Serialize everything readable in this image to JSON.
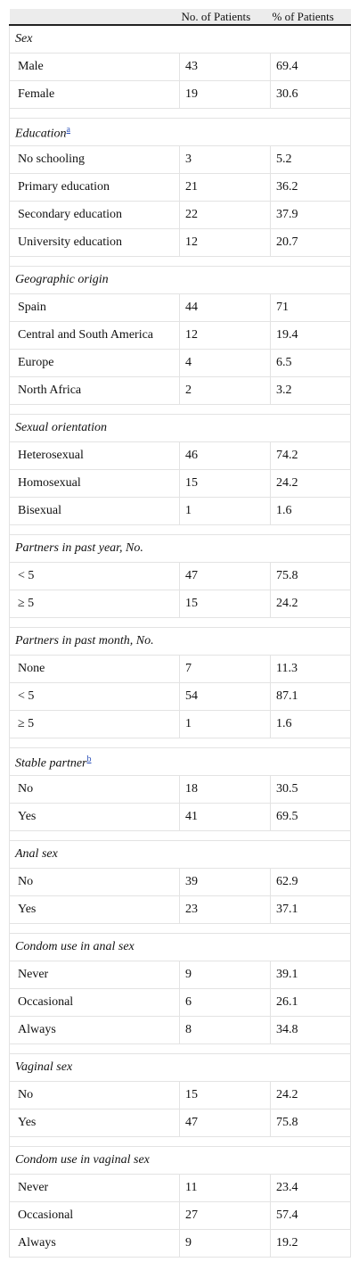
{
  "table": {
    "header": [
      "No. of Patients",
      "% of Patients"
    ],
    "sections": [
      {
        "title": "Sex",
        "rows": [
          [
            "Male",
            43,
            69.4
          ],
          [
            "Female",
            19,
            30.6
          ]
        ]
      },
      {
        "title": "Education",
        "note": "a",
        "rows": [
          [
            "No schooling",
            3,
            5.2
          ],
          [
            "Primary education",
            21,
            36.2
          ],
          [
            "Secondary education",
            22,
            37.9
          ],
          [
            "University education",
            12,
            20.7
          ]
        ]
      },
      {
        "title": "Geographic origin",
        "rows": [
          [
            "Spain",
            44,
            71
          ],
          [
            "Central and South America",
            12,
            19.4
          ],
          [
            "Europe",
            4,
            6.5
          ],
          [
            "North Africa",
            2,
            3.2
          ]
        ]
      },
      {
        "title": "Sexual orientation",
        "rows": [
          [
            "Heterosexual",
            46,
            74.2
          ],
          [
            "Homosexual",
            15,
            24.2
          ],
          [
            "Bisexual",
            1,
            1.6
          ]
        ]
      },
      {
        "title": "Partners in past year, No.",
        "rows": [
          [
            "< 5",
            47,
            75.8
          ],
          [
            "≥ 5",
            15,
            24.2
          ]
        ]
      },
      {
        "title": "Partners in past month, No.",
        "rows": [
          [
            "None",
            7,
            11.3
          ],
          [
            "< 5",
            54,
            87.1
          ],
          [
            "≥ 5",
            1,
            1.6
          ]
        ]
      },
      {
        "title": "Stable partner",
        "note": "b",
        "rows": [
          [
            "No",
            18,
            30.5
          ],
          [
            "Yes",
            41,
            69.5
          ]
        ]
      },
      {
        "title": "Anal sex",
        "rows": [
          [
            "No",
            39,
            62.9
          ],
          [
            "Yes",
            23,
            37.1
          ]
        ]
      },
      {
        "title": "Condom use in anal sex",
        "rows": [
          [
            "Never",
            9,
            39.1
          ],
          [
            "Occasional",
            6,
            26.1
          ],
          [
            "Always",
            8,
            34.8
          ]
        ]
      },
      {
        "title": "Vaginal sex",
        "rows": [
          [
            "No",
            15,
            24.2
          ],
          [
            "Yes",
            47,
            75.8
          ]
        ]
      },
      {
        "title": "Condom use in vaginal sex",
        "rows": [
          [
            "Never",
            11,
            23.4
          ],
          [
            "Occasional",
            27,
            57.4
          ],
          [
            "Always",
            9,
            19.2
          ]
        ]
      }
    ]
  }
}
